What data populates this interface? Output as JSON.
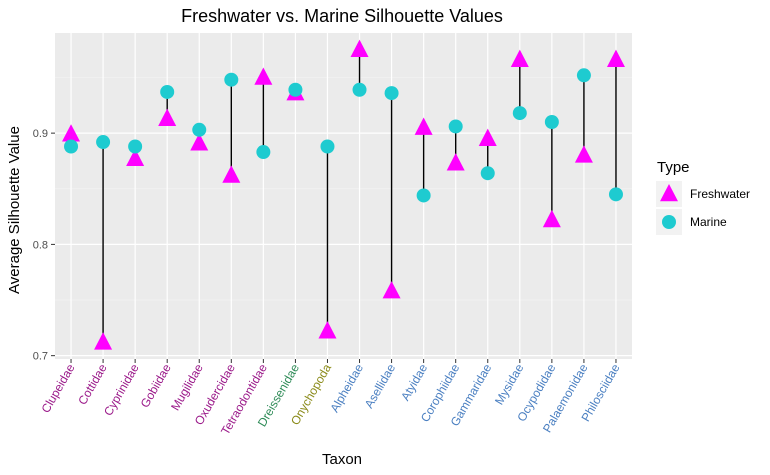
{
  "chart_data": {
    "type": "scatter",
    "title": "Freshwater vs. Marine Silhouette Values",
    "xlabel": "Taxon",
    "ylabel": "Average Silhouette Value",
    "ylim": [
      0.697,
      0.99
    ],
    "yticks": [
      "0.7",
      "0.8",
      "0.9"
    ],
    "categories": [
      "Clupeidae",
      "Cottidae",
      "Cyprinidae",
      "Gobiidae",
      "Mugilidae",
      "Oxudercidae",
      "Tetraodontidae",
      "Dreissenidae",
      "Onychopoda",
      "Alpheidae",
      "Asellidae",
      "Atyidae",
      "Corophiidae",
      "Gammaridae",
      "Mysidae",
      "Ocypodidae",
      "Palaemonidae",
      "Philosciidae"
    ],
    "category_colors": [
      "#9b1a8a",
      "#9b1a8a",
      "#9b1a8a",
      "#9b1a8a",
      "#9b1a8a",
      "#9b1a8a",
      "#9b1a8a",
      "#2e8b57",
      "#8a8a18",
      "#4a7fc1",
      "#4a7fc1",
      "#4a7fc1",
      "#4a7fc1",
      "#4a7fc1",
      "#4a7fc1",
      "#4a7fc1",
      "#4a7fc1",
      "#4a7fc1"
    ],
    "series": [
      {
        "name": "Freshwater",
        "shape": "triangle",
        "color": "#ff00ff",
        "values": [
          0.899,
          0.712,
          0.877,
          0.913,
          0.891,
          0.862,
          0.95,
          0.936,
          0.722,
          0.975,
          0.758,
          0.905,
          0.873,
          0.895,
          0.966,
          0.822,
          0.88,
          0.966
        ]
      },
      {
        "name": "Marine",
        "shape": "circle",
        "color": "#1ecbd0",
        "values": [
          0.888,
          0.892,
          0.888,
          0.937,
          0.903,
          0.948,
          0.883,
          0.939,
          0.888,
          0.939,
          0.936,
          0.844,
          0.906,
          0.864,
          0.918,
          0.91,
          0.952,
          0.845
        ]
      }
    ],
    "segments": "vertical line connecting Freshwater and Marine values per taxon",
    "grid": true,
    "panel_background": "#ebebeb",
    "legend": {
      "title": "Type",
      "position": "right"
    }
  }
}
